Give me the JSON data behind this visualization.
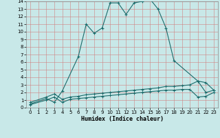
{
  "xlabel": "Humidex (Indice chaleur)",
  "ylabel": "",
  "bg_color": "#c8e8e8",
  "grid_color": "#b0d0d0",
  "line_color": "#1a6b6b",
  "xlim": [
    -0.5,
    23.5
  ],
  "ylim": [
    0,
    14
  ],
  "xticks": [
    0,
    1,
    2,
    3,
    4,
    5,
    6,
    7,
    8,
    9,
    10,
    11,
    12,
    13,
    14,
    15,
    16,
    17,
    18,
    19,
    20,
    21,
    22,
    23
  ],
  "yticks": [
    0,
    1,
    2,
    3,
    4,
    5,
    6,
    7,
    8,
    9,
    10,
    11,
    12,
    13,
    14
  ],
  "line1_x": [
    0,
    2,
    3,
    4,
    6,
    7,
    8,
    9,
    10,
    11,
    12,
    13,
    14,
    15,
    16,
    17,
    18,
    21,
    22,
    23
  ],
  "line1_y": [
    0.5,
    1.2,
    0.7,
    2.2,
    6.7,
    11.0,
    9.8,
    10.5,
    13.8,
    13.8,
    12.3,
    13.8,
    14.0,
    14.3,
    13.0,
    10.5,
    6.2,
    3.5,
    3.3,
    2.3
  ],
  "line2_x": [
    0,
    2,
    3,
    4,
    5,
    6,
    7,
    8,
    9,
    10,
    11,
    12,
    13,
    14,
    15,
    16,
    17,
    18,
    19,
    20,
    21,
    22,
    23
  ],
  "line2_y": [
    0.7,
    1.4,
    1.8,
    1.1,
    1.4,
    1.5,
    1.7,
    1.8,
    1.9,
    2.0,
    2.1,
    2.2,
    2.3,
    2.4,
    2.5,
    2.6,
    2.8,
    2.8,
    2.9,
    3.0,
    3.5,
    2.0,
    2.3
  ],
  "line3_x": [
    0,
    2,
    3,
    4,
    5,
    6,
    7,
    8,
    9,
    10,
    11,
    12,
    13,
    14,
    15,
    16,
    17,
    18,
    19,
    20,
    21,
    22,
    23
  ],
  "line3_y": [
    0.4,
    1.0,
    1.4,
    0.7,
    1.1,
    1.2,
    1.3,
    1.4,
    1.5,
    1.6,
    1.7,
    1.8,
    1.9,
    2.0,
    2.1,
    2.2,
    2.3,
    2.3,
    2.4,
    2.4,
    1.4,
    1.5,
    2.0
  ]
}
